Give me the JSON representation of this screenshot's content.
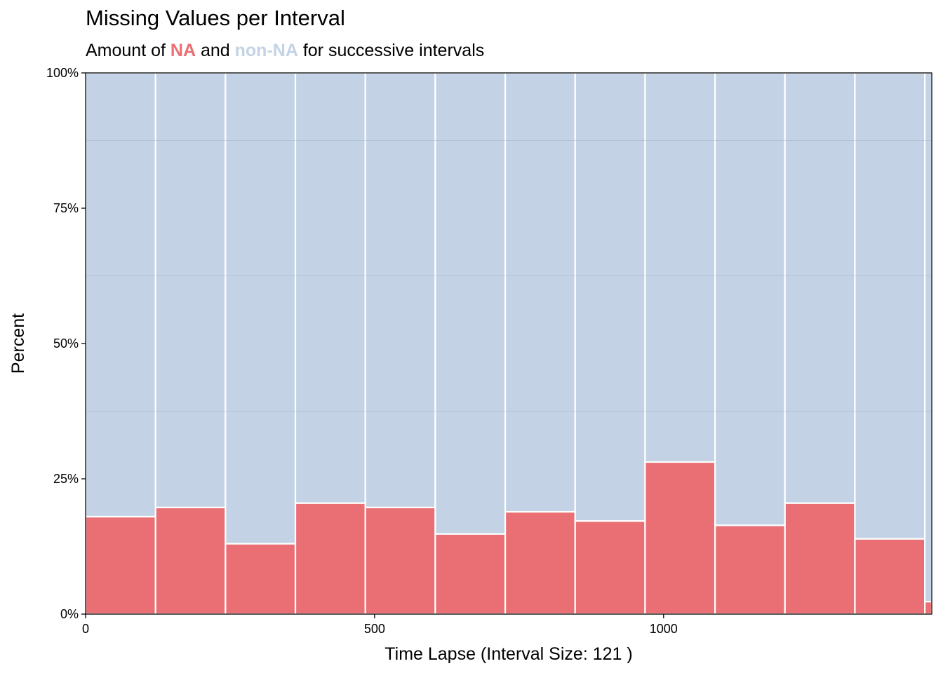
{
  "title": "Missing Values per Interval",
  "subtitle": {
    "prefix": "Amount of ",
    "na_word": "NA",
    "middle": " and ",
    "nonna_word": "non-NA",
    "suffix": " for successive intervals"
  },
  "colors": {
    "na": "#EA6F74",
    "non_na": "#C3D3E5",
    "bar_border": "#ffffff",
    "grid": "#9FB0C4"
  },
  "chart_data": {
    "type": "bar",
    "stacked": true,
    "xlabel": "Time Lapse (Interval Size: 121 )",
    "ylabel": "Percent",
    "xlim": [
      0,
      1464
    ],
    "ylim": [
      0,
      100
    ],
    "x_ticks": [
      {
        "value": 0,
        "label": "0"
      },
      {
        "value": 500,
        "label": "500"
      },
      {
        "value": 1000,
        "label": "1000"
      }
    ],
    "y_ticks": [
      {
        "value": 0,
        "label": "0%"
      },
      {
        "value": 25,
        "label": "25%"
      },
      {
        "value": 50,
        "label": "50%"
      },
      {
        "value": 75,
        "label": "75%"
      },
      {
        "value": 100,
        "label": "100%"
      }
    ],
    "minor_grid_y": [
      37.5,
      62.5,
      87.5
    ],
    "intervals": [
      {
        "start": 0,
        "end": 121,
        "na_pct": 18
      },
      {
        "start": 121,
        "end": 242,
        "na_pct": 19.7
      },
      {
        "start": 242,
        "end": 363,
        "na_pct": 13
      },
      {
        "start": 363,
        "end": 484,
        "na_pct": 20.5
      },
      {
        "start": 484,
        "end": 605,
        "na_pct": 19.7
      },
      {
        "start": 605,
        "end": 726,
        "na_pct": 14.8
      },
      {
        "start": 726,
        "end": 847,
        "na_pct": 18.9
      },
      {
        "start": 847,
        "end": 968,
        "na_pct": 17.2
      },
      {
        "start": 968,
        "end": 1089,
        "na_pct": 28.1
      },
      {
        "start": 1089,
        "end": 1210,
        "na_pct": 16.4
      },
      {
        "start": 1210,
        "end": 1331,
        "na_pct": 20.5
      },
      {
        "start": 1331,
        "end": 1452,
        "na_pct": 13.9
      },
      {
        "start": 1452,
        "end": 1464,
        "na_pct": 2.3
      }
    ]
  }
}
